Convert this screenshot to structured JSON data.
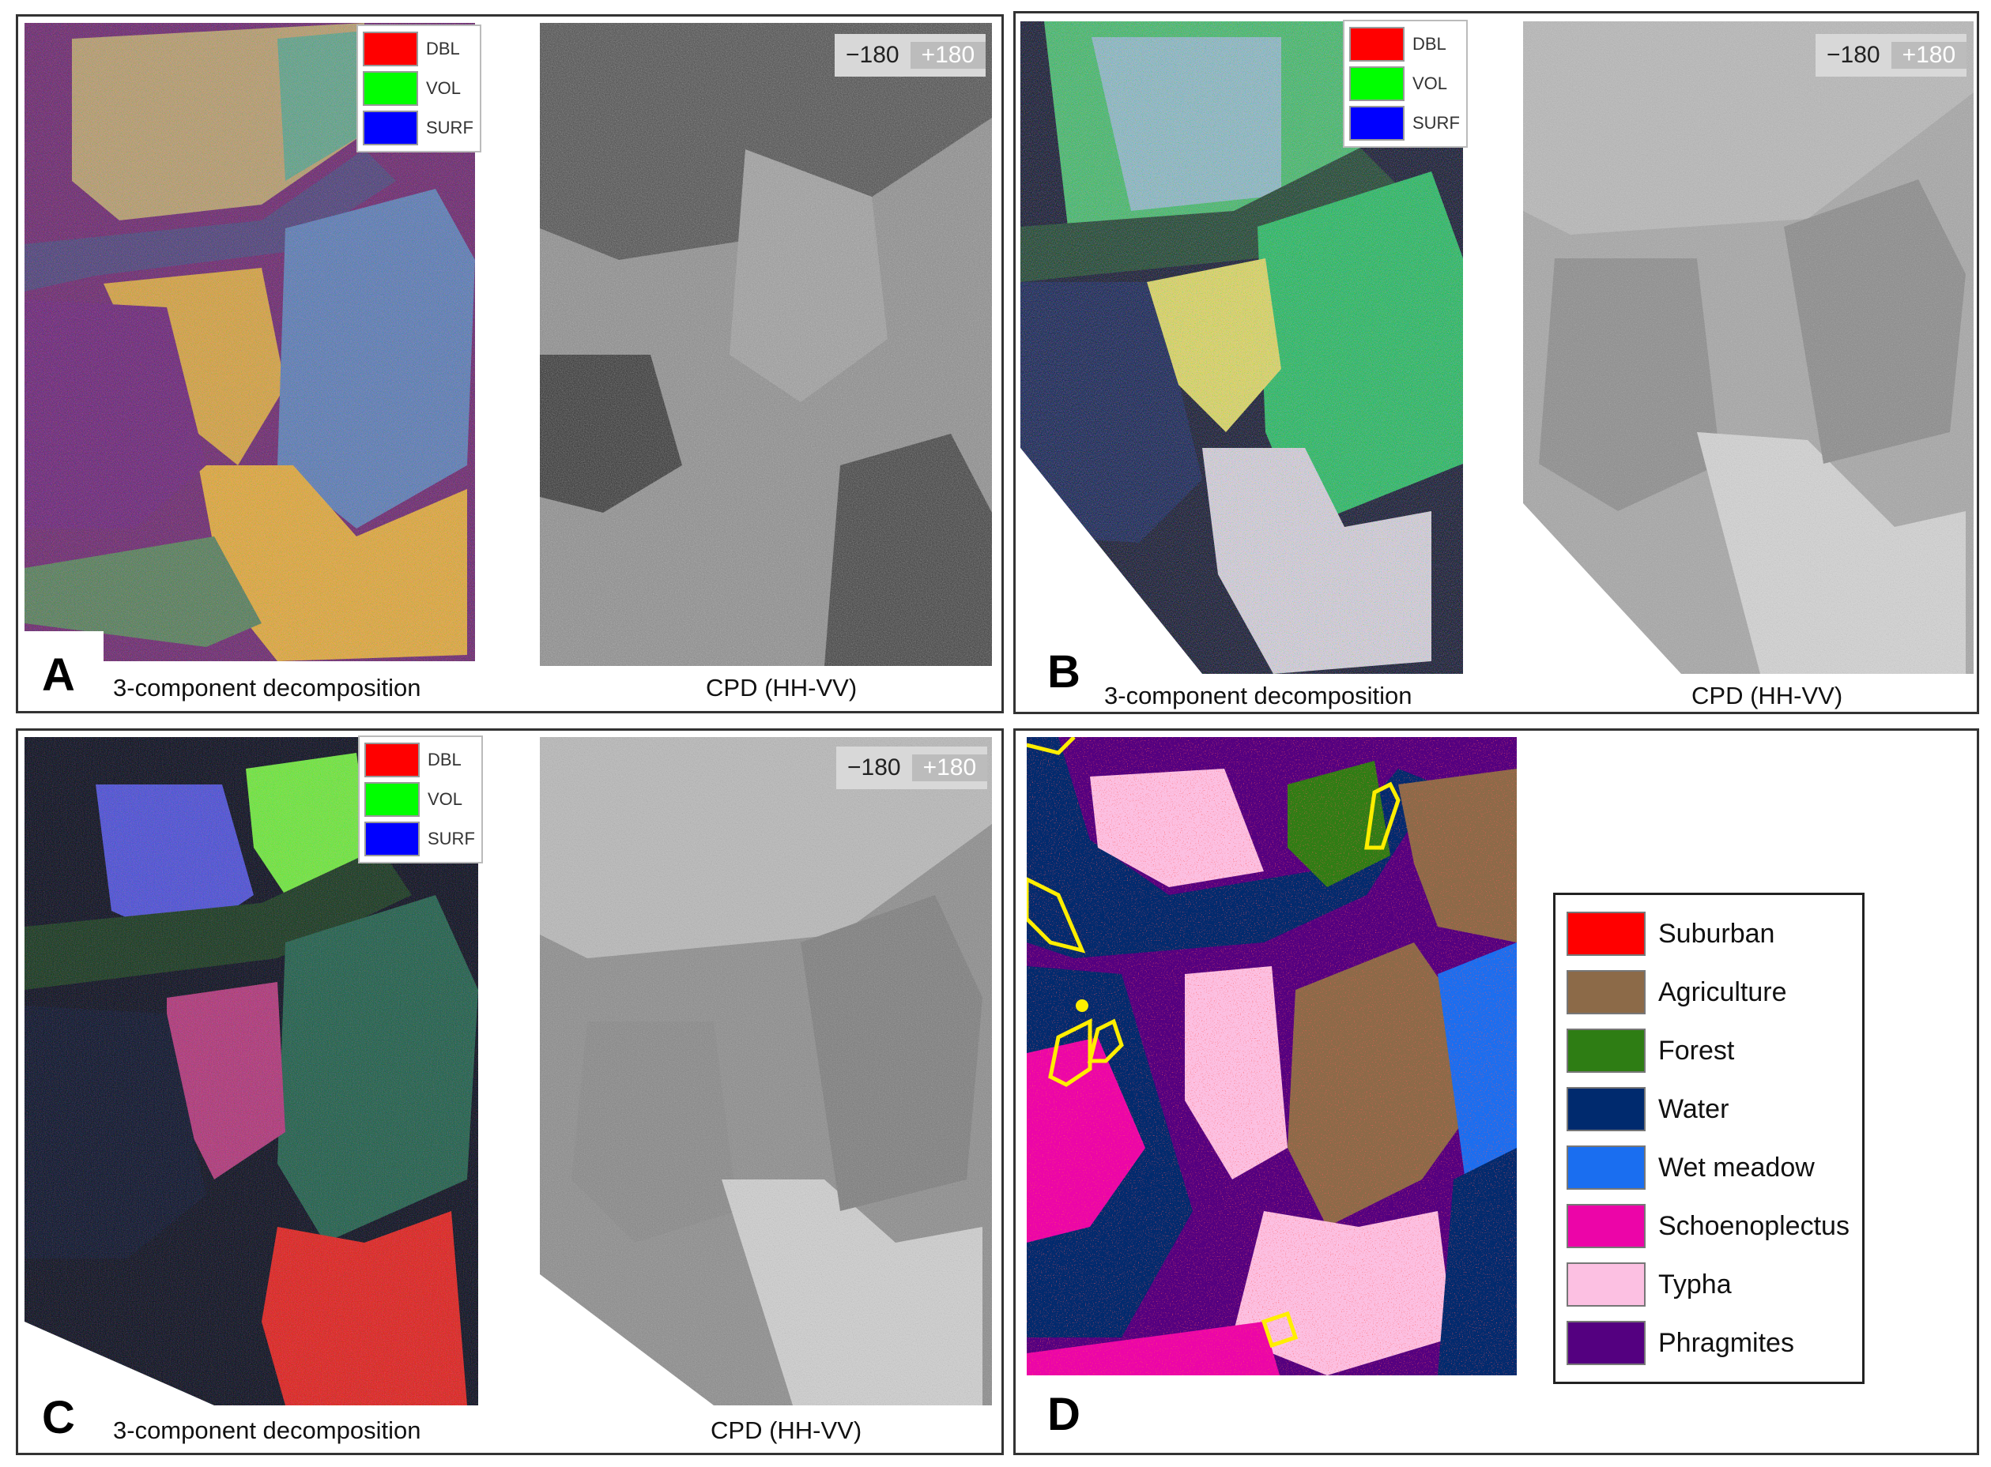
{
  "panels": {
    "A": {
      "letter": "A",
      "caption_left": "3-component decomposition",
      "caption_right": "CPD (HH-VV)"
    },
    "B": {
      "letter": "B",
      "caption_left": "3-component decomposition",
      "caption_right": "CPD (HH-VV)"
    },
    "C": {
      "letter": "C",
      "caption_left": "3-component decomposition",
      "caption_right": "CPD (HH-VV)"
    },
    "D": {
      "letter": "D"
    }
  },
  "rgb_legend": [
    {
      "label": "DBL",
      "color": "#ff0000"
    },
    {
      "label": "VOL",
      "color": "#00ff00"
    },
    {
      "label": "SURF",
      "color": "#0000ff"
    }
  ],
  "phase_scale": {
    "min": "−180",
    "max": "+180"
  },
  "class_legend": [
    {
      "label": "Suburban",
      "color": "#ff0000"
    },
    {
      "label": "Agriculture",
      "color": "#8c6a48"
    },
    {
      "label": "Forest",
      "color": "#2e7d14"
    },
    {
      "label": "Water",
      "color": "#002a6e"
    },
    {
      "label": "Wet meadow",
      "color": "#1a6ef0"
    },
    {
      "label": "Schoenoplectus",
      "color": "#ec05a8"
    },
    {
      "label": "Typha",
      "color": "#fcc0e2"
    },
    {
      "label": "Phragmites",
      "color": "#540080"
    }
  ]
}
